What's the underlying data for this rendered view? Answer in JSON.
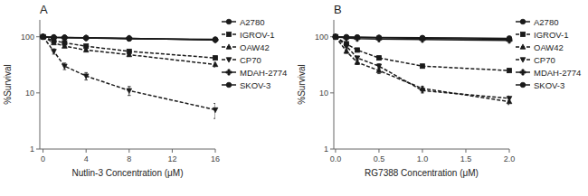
{
  "chart_data": [
    {
      "type": "line",
      "title": "A",
      "x_label": "Nutlin-3 Concentration (μM)",
      "y_label": "%Survival",
      "log": "y",
      "grid": false,
      "legend": "right",
      "color": "#1a1a1a",
      "xlim": [
        -0.3,
        16
      ],
      "ylim": [
        1,
        200
      ],
      "xticks": [
        0,
        4,
        8,
        12,
        16
      ],
      "yticks": [
        1,
        10,
        100
      ],
      "x": [
        0,
        1,
        2,
        4,
        8,
        16
      ],
      "series": [
        {
          "name": "A2780",
          "values": [
            100,
            98,
            97,
            95,
            92,
            90
          ],
          "errors": [
            2,
            2,
            2,
            2,
            2,
            3
          ],
          "marker": "circle",
          "line_style": "solid"
        },
        {
          "name": "IGROV-1",
          "values": [
            100,
            85,
            78,
            68,
            55,
            42
          ],
          "errors": [
            2,
            3,
            3,
            3,
            3,
            3
          ],
          "marker": "square",
          "line_style": "dashed"
        },
        {
          "name": "OAW42",
          "values": [
            100,
            78,
            68,
            58,
            48,
            32
          ],
          "errors": [
            2,
            3,
            3,
            3,
            3,
            3
          ],
          "marker": "triangle-up",
          "line_style": "dashed"
        },
        {
          "name": "CP70",
          "values": [
            100,
            55,
            30,
            20,
            11,
            5
          ],
          "errors": [
            2,
            6,
            4,
            3,
            2,
            1.5
          ],
          "marker": "triangle-down",
          "line_style": "dashed"
        },
        {
          "name": "MDAH-2774",
          "values": [
            100,
            97,
            96,
            95,
            94,
            88
          ],
          "errors": [
            2,
            1,
            1,
            1,
            1,
            1
          ],
          "marker": "plus",
          "line_style": "solid"
        },
        {
          "name": "SKOV-3",
          "values": [
            100,
            98,
            97,
            96,
            94,
            88
          ],
          "errors": [
            2,
            1,
            1,
            1,
            1,
            2
          ],
          "marker": "circle",
          "line_style": "solid"
        }
      ]
    },
    {
      "type": "line",
      "title": "B",
      "x_label": "RG7388 Concentration (μM)",
      "y_label": "%Survival",
      "log": "y",
      "grid": false,
      "legend": "right",
      "color": "#1a1a1a",
      "xlim": [
        -0.02,
        2.0
      ],
      "ylim": [
        1,
        200
      ],
      "xticks": [
        {
          "value": 0,
          "label": "0.0"
        },
        0.5,
        {
          "value": 1,
          "label": "1.0"
        },
        1.5,
        {
          "value": 2,
          "label": "2.0"
        }
      ],
      "yticks": [
        1,
        10,
        100
      ],
      "x": [
        0,
        0.125,
        0.25,
        0.5,
        1.0,
        2.0
      ],
      "series": [
        {
          "name": "A2780",
          "values": [
            100,
            99,
            98,
            96,
            94,
            90
          ],
          "errors": [
            2,
            1,
            1,
            1,
            1,
            2
          ],
          "marker": "circle",
          "line_style": "solid"
        },
        {
          "name": "IGROV-1",
          "values": [
            100,
            75,
            58,
            42,
            30,
            25
          ],
          "errors": [
            2,
            4,
            3,
            3,
            2,
            2
          ],
          "marker": "square",
          "line_style": "dashed"
        },
        {
          "name": "OAW42",
          "values": [
            100,
            55,
            35,
            25,
            12,
            7
          ],
          "errors": [
            2,
            4,
            3,
            3,
            1,
            0.8
          ],
          "marker": "triangle-up",
          "line_style": "dashed"
        },
        {
          "name": "CP70",
          "values": [
            100,
            68,
            42,
            30,
            11,
            8
          ],
          "errors": [
            2,
            4,
            3,
            3,
            1,
            0.8
          ],
          "marker": "triangle-down",
          "line_style": "dashed"
        },
        {
          "name": "MDAH-2774",
          "values": [
            100,
            95,
            93,
            91,
            89,
            86
          ],
          "errors": [
            2,
            1,
            1,
            1,
            1,
            1
          ],
          "marker": "plus",
          "line_style": "solid"
        },
        {
          "name": "SKOV-3",
          "values": [
            100,
            99,
            98,
            97,
            96,
            94
          ],
          "errors": [
            2,
            1,
            1,
            1,
            1,
            1
          ],
          "marker": "circle",
          "line_style": "solid"
        }
      ]
    }
  ]
}
